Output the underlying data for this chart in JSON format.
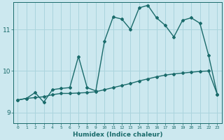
{
  "xlabel": "Humidex (Indice chaleur)",
  "ylabel": "",
  "background_color": "#cce8ef",
  "grid_color": "#aad4dd",
  "line_color": "#1a6b6b",
  "xlim": [
    -0.5,
    23.5
  ],
  "ylim": [
    8.75,
    11.65
  ],
  "yticks": [
    9,
    10,
    11
  ],
  "xticks": [
    0,
    1,
    2,
    3,
    4,
    5,
    6,
    7,
    8,
    9,
    10,
    11,
    12,
    13,
    14,
    15,
    16,
    17,
    18,
    19,
    20,
    21,
    22,
    23
  ],
  "series1_x": [
    0,
    1,
    2,
    3,
    4,
    5,
    6,
    7,
    8,
    9,
    10,
    11,
    12,
    13,
    14,
    15,
    16,
    17,
    18,
    19,
    20,
    21,
    22,
    23
  ],
  "series1_y": [
    9.3,
    9.34,
    9.36,
    9.38,
    9.43,
    9.46,
    9.46,
    9.47,
    9.48,
    9.5,
    9.55,
    9.6,
    9.65,
    9.7,
    9.76,
    9.81,
    9.86,
    9.9,
    9.93,
    9.95,
    9.97,
    9.99,
    10.0,
    9.44
  ],
  "series2_x": [
    0,
    1,
    2,
    3,
    4,
    5,
    6,
    7,
    8,
    9,
    10,
    11,
    12,
    13,
    14,
    15,
    16,
    17,
    18,
    19,
    20,
    21,
    22,
    23
  ],
  "series2_y": [
    9.3,
    9.34,
    9.48,
    9.25,
    9.55,
    9.58,
    9.6,
    10.35,
    9.6,
    9.52,
    10.72,
    11.3,
    11.25,
    11.0,
    11.52,
    11.58,
    11.28,
    11.1,
    10.82,
    11.22,
    11.28,
    11.15,
    10.38,
    9.44
  ],
  "marker": "D",
  "marker_size": 2.0,
  "line_width": 1.0
}
